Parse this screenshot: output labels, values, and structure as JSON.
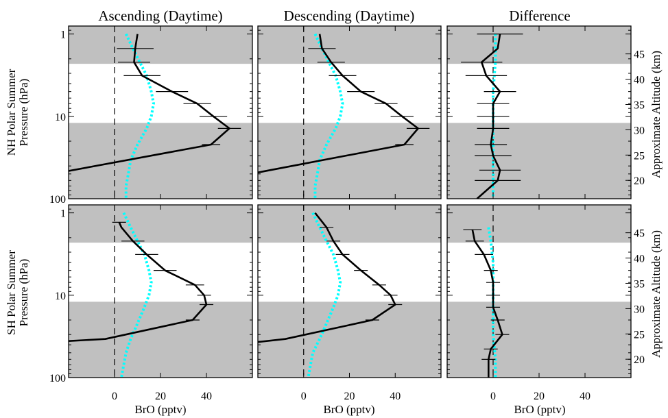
{
  "figure": {
    "column_titles": [
      "Ascending (Daytime)",
      "Descending (Daytime)",
      "Difference"
    ],
    "row_labels": [
      [
        "NH Polar Summer",
        "Pressure (hPa)"
      ],
      [
        "SH Polar Summer",
        "Pressure (hPa)"
      ]
    ],
    "xlabel": "BrO (pptv)",
    "right_axis_label": "Approximate Altitude (km)",
    "colors": {
      "profile": "#000000",
      "model": "#00ffff",
      "shade": "#c0c0c0"
    }
  },
  "chart_data": {
    "type": "line",
    "x_axis": {
      "range": [
        -20,
        60
      ],
      "ticks": [
        0,
        20,
        40
      ],
      "label": "BrO (pptv)"
    },
    "y_axis": {
      "scale": "log",
      "range": [
        100,
        0.8
      ],
      "ticks": [
        1,
        10,
        100
      ],
      "label": "Pressure (hPa)"
    },
    "altitude_axis": {
      "ticks": [
        20,
        25,
        30,
        35,
        40,
        45
      ],
      "label": "Approximate Altitude (km)"
    },
    "panels": [
      {
        "column": "Ascending (Daytime)",
        "row": "NH Polar Summer",
        "shaded_ranges_hPa": [
          [
            0.8,
            2.3
          ],
          [
            12,
            110
          ]
        ],
        "profile": [
          [
            10,
            1
          ],
          [
            9,
            1.5
          ],
          [
            8.5,
            2.2
          ],
          [
            12,
            3.2
          ],
          [
            25,
            5
          ],
          [
            36,
            7
          ],
          [
            43,
            10
          ],
          [
            50,
            14
          ],
          [
            42,
            22
          ],
          [
            -20,
            46
          ]
        ],
        "errors": [
          [
            8,
            1.5
          ],
          [
            7,
            2.2
          ],
          [
            8,
            3.2
          ],
          [
            7,
            5
          ],
          [
            6,
            7
          ],
          [
            6,
            10
          ],
          [
            5,
            14
          ],
          [
            4,
            22
          ]
        ],
        "model": [
          [
            5,
            1
          ],
          [
            8,
            1.5
          ],
          [
            11,
            2.2
          ],
          [
            14,
            3.2
          ],
          [
            16,
            5
          ],
          [
            17,
            7
          ],
          [
            16,
            10
          ],
          [
            14,
            14
          ],
          [
            10,
            22
          ],
          [
            7,
            34
          ],
          [
            6,
            50
          ],
          [
            5,
            70
          ],
          [
            5,
            100
          ]
        ]
      },
      {
        "column": "Descending (Daytime)",
        "row": "NH Polar Summer",
        "shaded_ranges_hPa": [
          [
            0.8,
            2.3
          ],
          [
            12,
            110
          ]
        ],
        "profile": [
          [
            7,
            1
          ],
          [
            8,
            1.5
          ],
          [
            12,
            2.2
          ],
          [
            17,
            3.2
          ],
          [
            25,
            5
          ],
          [
            36,
            7
          ],
          [
            43,
            10
          ],
          [
            50,
            14
          ],
          [
            44,
            22
          ],
          [
            -20,
            48
          ]
        ],
        "errors": [
          [
            6,
            1.5
          ],
          [
            6,
            2.2
          ],
          [
            6,
            3.2
          ],
          [
            6,
            5
          ],
          [
            5,
            7
          ],
          [
            5,
            10
          ],
          [
            5,
            14
          ],
          [
            4,
            22
          ]
        ],
        "model": [
          [
            5,
            1
          ],
          [
            8,
            1.5
          ],
          [
            11,
            2.2
          ],
          [
            14,
            3.2
          ],
          [
            16,
            5
          ],
          [
            17,
            7
          ],
          [
            16,
            10
          ],
          [
            14,
            14
          ],
          [
            10,
            22
          ],
          [
            7,
            34
          ],
          [
            6,
            50
          ],
          [
            5,
            70
          ],
          [
            5,
            100
          ]
        ]
      },
      {
        "column": "Difference",
        "row": "NH Polar Summer",
        "shaded_ranges_hPa": [
          [
            0.8,
            2.3
          ],
          [
            12,
            110
          ]
        ],
        "profile": [
          [
            3,
            1
          ],
          [
            2,
            1.5
          ],
          [
            -5,
            2.2
          ],
          [
            -3,
            3.2
          ],
          [
            3,
            5
          ],
          [
            0,
            7
          ],
          [
            0,
            10
          ],
          [
            0,
            14
          ],
          [
            -1,
            22
          ],
          [
            0,
            30
          ],
          [
            3,
            45
          ],
          [
            2,
            60
          ],
          [
            -7,
            100
          ]
        ],
        "errors": [
          [
            10,
            1
          ],
          [
            9,
            2.2
          ],
          [
            9,
            3.2
          ],
          [
            7,
            5
          ],
          [
            7,
            7
          ],
          [
            7,
            10
          ],
          [
            7,
            14
          ],
          [
            7,
            22
          ],
          [
            8,
            30
          ],
          [
            9,
            45
          ],
          [
            10,
            60
          ]
        ],
        "model": [
          [
            1,
            1
          ],
          [
            1,
            2.2
          ],
          [
            0,
            5
          ],
          [
            0,
            10
          ],
          [
            0,
            22
          ],
          [
            0,
            50
          ],
          [
            0,
            100
          ]
        ]
      },
      {
        "column": "Ascending (Daytime)",
        "row": "SH Polar Summer",
        "shaded_ranges_hPa": [
          [
            0.8,
            2.3
          ],
          [
            12,
            110
          ]
        ],
        "profile": [
          [
            2,
            1.3
          ],
          [
            3,
            1.5
          ],
          [
            8,
            2.2
          ],
          [
            14,
            3.2
          ],
          [
            22,
            5
          ],
          [
            35,
            7.5
          ],
          [
            39,
            10
          ],
          [
            40,
            13
          ],
          [
            34,
            20
          ],
          [
            -4,
            34
          ],
          [
            -20,
            36
          ]
        ],
        "errors": [
          [
            3,
            1.3
          ],
          [
            5,
            2.2
          ],
          [
            5,
            3.2
          ],
          [
            5,
            5
          ],
          [
            4,
            7.5
          ],
          [
            3,
            10
          ],
          [
            3,
            13
          ],
          [
            3,
            20
          ]
        ],
        "model": [
          [
            4,
            1
          ],
          [
            7,
            1.5
          ],
          [
            10,
            2.2
          ],
          [
            13,
            3.2
          ],
          [
            15,
            5
          ],
          [
            16,
            7
          ],
          [
            15,
            10
          ],
          [
            13,
            14
          ],
          [
            10,
            22
          ],
          [
            7,
            34
          ],
          [
            5,
            50
          ],
          [
            4,
            70
          ],
          [
            3,
            100
          ]
        ]
      },
      {
        "column": "Descending (Daytime)",
        "row": "SH Polar Summer",
        "shaded_ranges_hPa": [
          [
            0.8,
            2.3
          ],
          [
            12,
            110
          ]
        ],
        "profile": [
          [
            5,
            1
          ],
          [
            10,
            1.5
          ],
          [
            13,
            2.2
          ],
          [
            17,
            3.2
          ],
          [
            25,
            5
          ],
          [
            33,
            7.5
          ],
          [
            38,
            10
          ],
          [
            40,
            13
          ],
          [
            30,
            20
          ],
          [
            -8,
            34
          ],
          [
            -20,
            37
          ]
        ],
        "errors": [
          [
            3,
            1.5
          ],
          [
            3,
            2.2
          ],
          [
            3,
            3.2
          ],
          [
            3,
            5
          ],
          [
            3,
            7.5
          ],
          [
            3,
            10
          ],
          [
            3,
            13
          ],
          [
            3,
            20
          ]
        ],
        "model": [
          [
            4,
            1
          ],
          [
            7,
            1.5
          ],
          [
            10,
            2.2
          ],
          [
            13,
            3.2
          ],
          [
            15,
            5
          ],
          [
            16,
            7
          ],
          [
            15,
            10
          ],
          [
            13,
            14
          ],
          [
            10,
            22
          ],
          [
            7,
            34
          ],
          [
            4,
            50
          ],
          [
            3,
            70
          ],
          [
            2,
            100
          ]
        ]
      },
      {
        "column": "Difference",
        "row": "SH Polar Summer",
        "shaded_ranges_hPa": [
          [
            0.8,
            2.3
          ],
          [
            12,
            110
          ]
        ],
        "profile": [
          [
            -9,
            1.6
          ],
          [
            -8,
            2.2
          ],
          [
            -4,
            3.2
          ],
          [
            -1,
            5
          ],
          [
            0,
            7
          ],
          [
            0,
            10
          ],
          [
            0,
            14
          ],
          [
            2,
            20
          ],
          [
            4,
            30
          ],
          [
            -1,
            45
          ],
          [
            -2,
            60
          ],
          [
            -2,
            100
          ]
        ],
        "errors": [
          [
            4,
            1.6
          ],
          [
            4,
            2.2
          ],
          [
            4,
            3.2
          ],
          [
            3,
            5
          ],
          [
            3,
            7
          ],
          [
            3,
            10
          ],
          [
            3,
            14
          ],
          [
            3,
            20
          ],
          [
            3,
            30
          ],
          [
            3,
            45
          ],
          [
            3,
            60
          ]
        ],
        "model": [
          [
            -2,
            1.5
          ],
          [
            -1,
            2.2
          ],
          [
            0,
            4
          ],
          [
            0,
            8
          ],
          [
            0,
            15
          ],
          [
            0,
            30
          ],
          [
            1,
            60
          ],
          [
            1,
            100
          ]
        ]
      }
    ]
  }
}
